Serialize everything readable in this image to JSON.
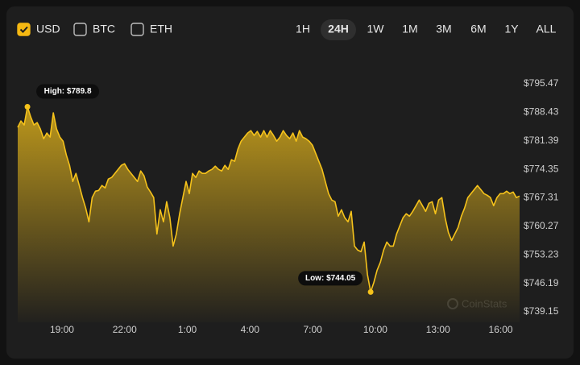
{
  "controls": {
    "currencies": [
      {
        "label": "USD",
        "checked": true
      },
      {
        "label": "BTC",
        "checked": false
      },
      {
        "label": "ETH",
        "checked": false
      }
    ],
    "ranges": [
      "1H",
      "24H",
      "1W",
      "1M",
      "3M",
      "6M",
      "1Y",
      "ALL"
    ],
    "selected_range": "24H"
  },
  "chart_data": {
    "type": "area",
    "color": "#f5c21b",
    "annotations": {
      "high": "High: $789.8",
      "low": "Low: $744.05"
    },
    "watermark": "CoinStats",
    "x": [
      16.88,
      17.035,
      17.19,
      17.345,
      17.5,
      17.655,
      17.81,
      17.965,
      18.12,
      18.275,
      18.43,
      18.585,
      18.74,
      18.895,
      19.05,
      19.205,
      19.36,
      19.515,
      19.67,
      19.825,
      19.98,
      20.135,
      20.29,
      20.445,
      20.6,
      20.755,
      20.91,
      21.065,
      21.22,
      21.375,
      21.53,
      21.685,
      21.84,
      21.995,
      22.15,
      22.305,
      22.46,
      22.615,
      22.77,
      22.925,
      23.08,
      23.235,
      23.39,
      23.545,
      23.7,
      23.855,
      24.01,
      24.165,
      24.32,
      24.475,
      24.63,
      24.785,
      24.94,
      25.095,
      25.25,
      25.405,
      25.56,
      25.715,
      25.87,
      26.025,
      26.18,
      26.335,
      26.49,
      26.645,
      26.8,
      26.955,
      27.11,
      27.265,
      27.42,
      27.575,
      27.73,
      27.885,
      28.04,
      28.195,
      28.35,
      28.505,
      28.66,
      28.815,
      28.97,
      29.125,
      29.28,
      29.435,
      29.59,
      29.745,
      29.9,
      30.055,
      30.21,
      30.365,
      30.52,
      30.675,
      30.83,
      30.985,
      31.14,
      31.295,
      31.45,
      31.605,
      31.76,
      31.915,
      32.07,
      32.225,
      32.38,
      32.535,
      32.69,
      32.845,
      33.0,
      33.155,
      33.31,
      33.465,
      33.62,
      33.775,
      33.93,
      34.085,
      34.24,
      34.395,
      34.55,
      34.705,
      34.86,
      35.015,
      35.17,
      35.325,
      35.48,
      35.635,
      35.79,
      35.945,
      36.1,
      36.255,
      36.41,
      36.565,
      36.72,
      36.875,
      37.03,
      37.185,
      37.34,
      37.495,
      37.65,
      37.805,
      37.96,
      38.115,
      38.27,
      38.425,
      38.58,
      38.735,
      38.89,
      39.045,
      39.2,
      39.355,
      39.51,
      39.665,
      39.82,
      39.975,
      40.13,
      40.285,
      40.44,
      40.595,
      40.75,
      40.905
    ],
    "values": [
      784.7,
      786.3,
      785.3,
      789.8,
      787.29,
      785.3,
      785.9,
      784.3,
      781.91,
      783.31,
      782.31,
      788.29,
      784.3,
      782.31,
      781.31,
      777.92,
      775.33,
      771.34,
      773.34,
      770.35,
      767.36,
      764.76,
      761.37,
      767.36,
      768.95,
      769.15,
      770.35,
      769.75,
      771.94,
      772.34,
      773.34,
      774.33,
      775.33,
      775.73,
      774.33,
      773.34,
      772.34,
      771.34,
      773.94,
      772.74,
      769.95,
      768.75,
      767.36,
      758.38,
      764.36,
      761.37,
      766.36,
      762.37,
      755.39,
      758.38,
      763.37,
      767.36,
      771.34,
      768.35,
      773.34,
      772.34,
      773.94,
      773.34,
      773.34,
      773.94,
      774.33,
      775.13,
      774.33,
      773.94,
      775.33,
      774.33,
      776.73,
      776.33,
      779.32,
      781.31,
      782.31,
      783.31,
      783.9,
      782.71,
      783.71,
      782.31,
      783.9,
      782.31,
      783.9,
      782.71,
      781.31,
      782.31,
      783.9,
      782.71,
      781.91,
      783.31,
      781.31,
      783.9,
      782.31,
      781.91,
      781.31,
      780.32,
      778.32,
      776.33,
      774.33,
      771.34,
      768.35,
      766.76,
      766.36,
      762.77,
      764.36,
      762.37,
      761.37,
      763.96,
      755.39,
      754.39,
      753.99,
      756.39,
      748.41,
      744.05,
      746.42,
      749.41,
      751.4,
      754.39,
      756.39,
      755.39,
      755.39,
      758.38,
      760.38,
      762.37,
      763.37,
      762.77,
      763.96,
      765.36,
      766.76,
      765.36,
      763.96,
      765.96,
      766.36,
      763.37,
      766.76,
      767.36,
      762.37,
      758.78,
      756.79,
      758.38,
      759.98,
      762.77,
      764.76,
      767.36,
      768.35,
      769.35,
      770.35,
      769.35,
      768.35,
      767.95,
      767.36,
      765.36,
      767.36,
      768.35,
      768.35,
      768.95,
      768.35,
      768.75,
      767.36,
      767.75
    ],
    "xlim": [
      16.88,
      40.905
    ],
    "xticks": [
      {
        "value": 19,
        "label": "19:00"
      },
      {
        "value": 22,
        "label": "22:00"
      },
      {
        "value": 25,
        "label": "1:00"
      },
      {
        "value": 28,
        "label": "4:00"
      },
      {
        "value": 31,
        "label": "7:00"
      },
      {
        "value": 34,
        "label": "10:00"
      },
      {
        "value": 37,
        "label": "13:00"
      },
      {
        "value": 40,
        "label": "16:00"
      }
    ],
    "ylim": [
      739.15,
      795.47
    ],
    "yticks": [
      {
        "value": 739.15,
        "label": "$739.15"
      },
      {
        "value": 746.19,
        "label": "$746.19"
      },
      {
        "value": 753.23,
        "label": "$753.23"
      },
      {
        "value": 760.27,
        "label": "$760.27"
      },
      {
        "value": 767.31,
        "label": "$767.31"
      },
      {
        "value": 774.35,
        "label": "$774.35"
      },
      {
        "value": 781.39,
        "label": "$781.39"
      },
      {
        "value": 788.43,
        "label": "$788.43"
      },
      {
        "value": 795.47,
        "label": "$795.47"
      }
    ],
    "grid": false
  }
}
